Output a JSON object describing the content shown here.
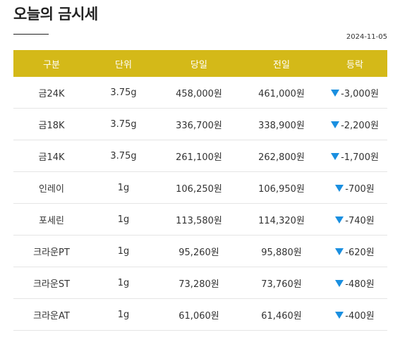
{
  "page": {
    "title": "오늘의 금시세",
    "date": "2024-11-05"
  },
  "table": {
    "headers": [
      "구분",
      "단위",
      "당일",
      "전일",
      "등락"
    ],
    "down_color": "#1a8fe0",
    "header_bg": "#d4b918",
    "rows": [
      {
        "category": "금24K",
        "unit": "3.75g",
        "today": "458,000원",
        "prev": "461,000원",
        "change_icon": "down-triangle-icon",
        "change": "-3,000원"
      },
      {
        "category": "금18K",
        "unit": "3.75g",
        "today": "336,700원",
        "prev": "338,900원",
        "change_icon": "down-triangle-icon",
        "change": "-2,200원"
      },
      {
        "category": "금14K",
        "unit": "3.75g",
        "today": "261,100원",
        "prev": "262,800원",
        "change_icon": "down-triangle-icon",
        "change": "-1,700원"
      },
      {
        "category": "인레이",
        "unit": "1g",
        "today": "106,250원",
        "prev": "106,950원",
        "change_icon": "down-triangle-icon",
        "change": "-700원"
      },
      {
        "category": "포세린",
        "unit": "1g",
        "today": "113,580원",
        "prev": "114,320원",
        "change_icon": "down-triangle-icon",
        "change": "-740원"
      },
      {
        "category": "크라운PT",
        "unit": "1g",
        "today": "95,260원",
        "prev": "95,880원",
        "change_icon": "down-triangle-icon",
        "change": "-620원"
      },
      {
        "category": "크라운ST",
        "unit": "1g",
        "today": "73,280원",
        "prev": "73,760원",
        "change_icon": "down-triangle-icon",
        "change": "-480원"
      },
      {
        "category": "크라운AT",
        "unit": "1g",
        "today": "61,060원",
        "prev": "61,460원",
        "change_icon": "down-triangle-icon",
        "change": "-400원"
      }
    ]
  }
}
